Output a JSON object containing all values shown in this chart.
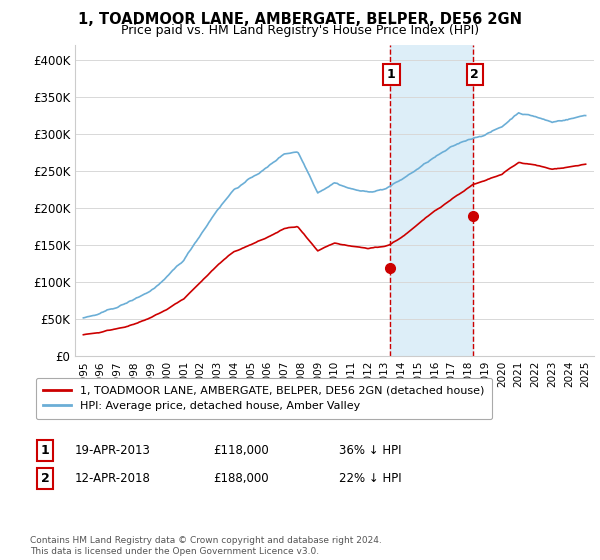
{
  "title": "1, TOADMOOR LANE, AMBERGATE, BELPER, DE56 2GN",
  "subtitle": "Price paid vs. HM Land Registry's House Price Index (HPI)",
  "ylim": [
    0,
    420000
  ],
  "yticks": [
    0,
    50000,
    100000,
    150000,
    200000,
    250000,
    300000,
    350000,
    400000
  ],
  "ytick_labels": [
    "£0",
    "£50K",
    "£100K",
    "£150K",
    "£200K",
    "£250K",
    "£300K",
    "£350K",
    "£400K"
  ],
  "hpi_color": "#6baed6",
  "hpi_fill_color": "#ddeef8",
  "price_color": "#cc0000",
  "sale1_date": 2013.3,
  "sale1_price": 118000,
  "sale2_date": 2018.28,
  "sale2_price": 188000,
  "legend_label1": "1, TOADMOOR LANE, AMBERGATE, BELPER, DE56 2GN (detached house)",
  "legend_label2": "HPI: Average price, detached house, Amber Valley",
  "annotation1_date": "19-APR-2013",
  "annotation1_price": "£118,000",
  "annotation1_hpi": "36% ↓ HPI",
  "annotation2_date": "12-APR-2018",
  "annotation2_price": "£188,000",
  "annotation2_hpi": "22% ↓ HPI",
  "footer": "Contains HM Land Registry data © Crown copyright and database right 2024.\nThis data is licensed under the Open Government Licence v3.0.",
  "background_color": "#ffffff"
}
